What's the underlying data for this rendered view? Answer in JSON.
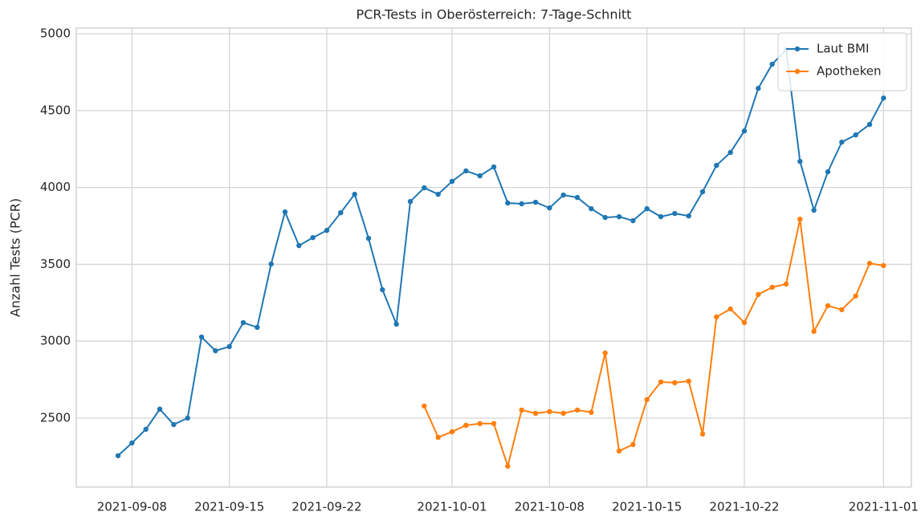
{
  "chart_data": {
    "type": "line",
    "title": "PCR-Tests in Oberösterreich: 7-Tage-Schnitt",
    "y_label": "Anzahl Tests (PCR)",
    "x": [
      "2021-09-07",
      "2021-09-08",
      "2021-09-09",
      "2021-09-10",
      "2021-09-11",
      "2021-09-12",
      "2021-09-13",
      "2021-09-14",
      "2021-09-15",
      "2021-09-16",
      "2021-09-17",
      "2021-09-18",
      "2021-09-19",
      "2021-09-20",
      "2021-09-21",
      "2021-09-22",
      "2021-09-23",
      "2021-09-24",
      "2021-09-25",
      "2021-09-26",
      "2021-09-27",
      "2021-09-28",
      "2021-09-29",
      "2021-09-30",
      "2021-10-01",
      "2021-10-02",
      "2021-10-03",
      "2021-10-04",
      "2021-10-05",
      "2021-10-06",
      "2021-10-07",
      "2021-10-08",
      "2021-10-09",
      "2021-10-10",
      "2021-10-11",
      "2021-10-12",
      "2021-10-13",
      "2021-10-14",
      "2021-10-15",
      "2021-10-16",
      "2021-10-17",
      "2021-10-18",
      "2021-10-19",
      "2021-10-20",
      "2021-10-21",
      "2021-10-22",
      "2021-10-23",
      "2021-10-24",
      "2021-10-25",
      "2021-10-26",
      "2021-10-27",
      "2021-10-28",
      "2021-10-29",
      "2021-10-30",
      "2021-10-31",
      "2021-11-01"
    ],
    "series": [
      {
        "name": "Laut BMI",
        "color": "#1f77b4",
        "values": [
          2255,
          2338,
          2427,
          2558,
          2458,
          2500,
          3027,
          2938,
          2965,
          3121,
          3090,
          3502,
          3841,
          3622,
          3674,
          3721,
          3836,
          3956,
          3669,
          3335,
          3111,
          3909,
          3998,
          3956,
          4040,
          4108,
          4076,
          4134,
          3899,
          3894,
          3904,
          3867,
          3951,
          3935,
          3862,
          3805,
          3810,
          3784,
          3862,
          3810,
          3831,
          3815,
          3972,
          4144,
          4228,
          4368,
          4645,
          4802,
          4896,
          4170,
          3852,
          4102,
          4295,
          4342,
          4410,
          4582
        ]
      },
      {
        "name": "Apotheken",
        "color": "#ff7f0e",
        "values": [
          null,
          null,
          null,
          null,
          null,
          null,
          null,
          null,
          null,
          null,
          null,
          null,
          null,
          null,
          null,
          null,
          null,
          null,
          null,
          null,
          null,
          null,
          2578,
          2375,
          2411,
          2453,
          2464,
          2464,
          2187,
          2552,
          2531,
          2542,
          2531,
          2552,
          2537,
          2923,
          2286,
          2328,
          2620,
          2735,
          2730,
          2740,
          2396,
          3158,
          3210,
          3121,
          3304,
          3351,
          3372,
          3794,
          3064,
          3231,
          3205,
          3294,
          3507,
          3492
        ]
      }
    ],
    "xlim": [
      "2021-09-04",
      "2021-11-03"
    ],
    "xticks": [
      "2021-09-08",
      "2021-09-15",
      "2021-09-22",
      "2021-10-01",
      "2021-10-08",
      "2021-10-15",
      "2021-10-22",
      "2021-11-01"
    ],
    "ylim": [
      2051,
      5037
    ],
    "yticks": [
      2500,
      3000,
      3500,
      4000,
      4500,
      5000
    ],
    "grid": true,
    "legend": "upper right"
  }
}
